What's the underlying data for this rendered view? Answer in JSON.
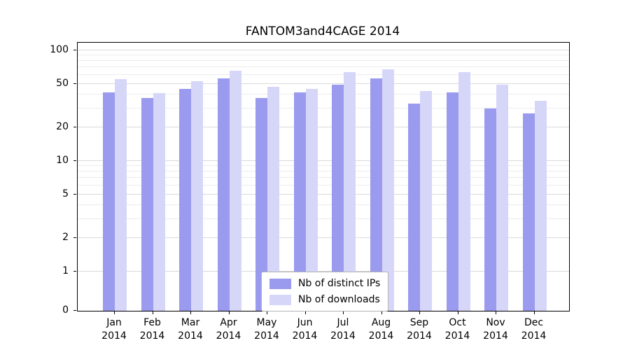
{
  "chart_data": {
    "type": "bar",
    "title": "FANTOM3and4CAGE 2014",
    "categories": [
      "Jan 2014",
      "Feb 2014",
      "Mar 2014",
      "Apr 2014",
      "May 2014",
      "Jun 2014",
      "Jul 2014",
      "Aug 2014",
      "Sep 2014",
      "Oct 2014",
      "Nov 2014",
      "Dec 2014"
    ],
    "series": [
      {
        "name": "Nb of distinct IPs",
        "color": "#9a9aee",
        "values": [
          42,
          37,
          45,
          56,
          37,
          42,
          49,
          56,
          33,
          42,
          30,
          27
        ]
      },
      {
        "name": "Nb of downloads",
        "color": "#d6d6f9",
        "values": [
          55,
          41,
          53,
          66,
          47,
          45,
          64,
          67,
          43,
          64,
          49,
          35
        ]
      }
    ],
    "yscale": "log-above-1-with-zero-baseline",
    "yticks": [
      0,
      1,
      2,
      5,
      10,
      20,
      50,
      100
    ],
    "ylim": [
      0,
      120
    ],
    "xlabel": "",
    "ylabel": "",
    "grid": true,
    "legend_position": "lower center"
  }
}
